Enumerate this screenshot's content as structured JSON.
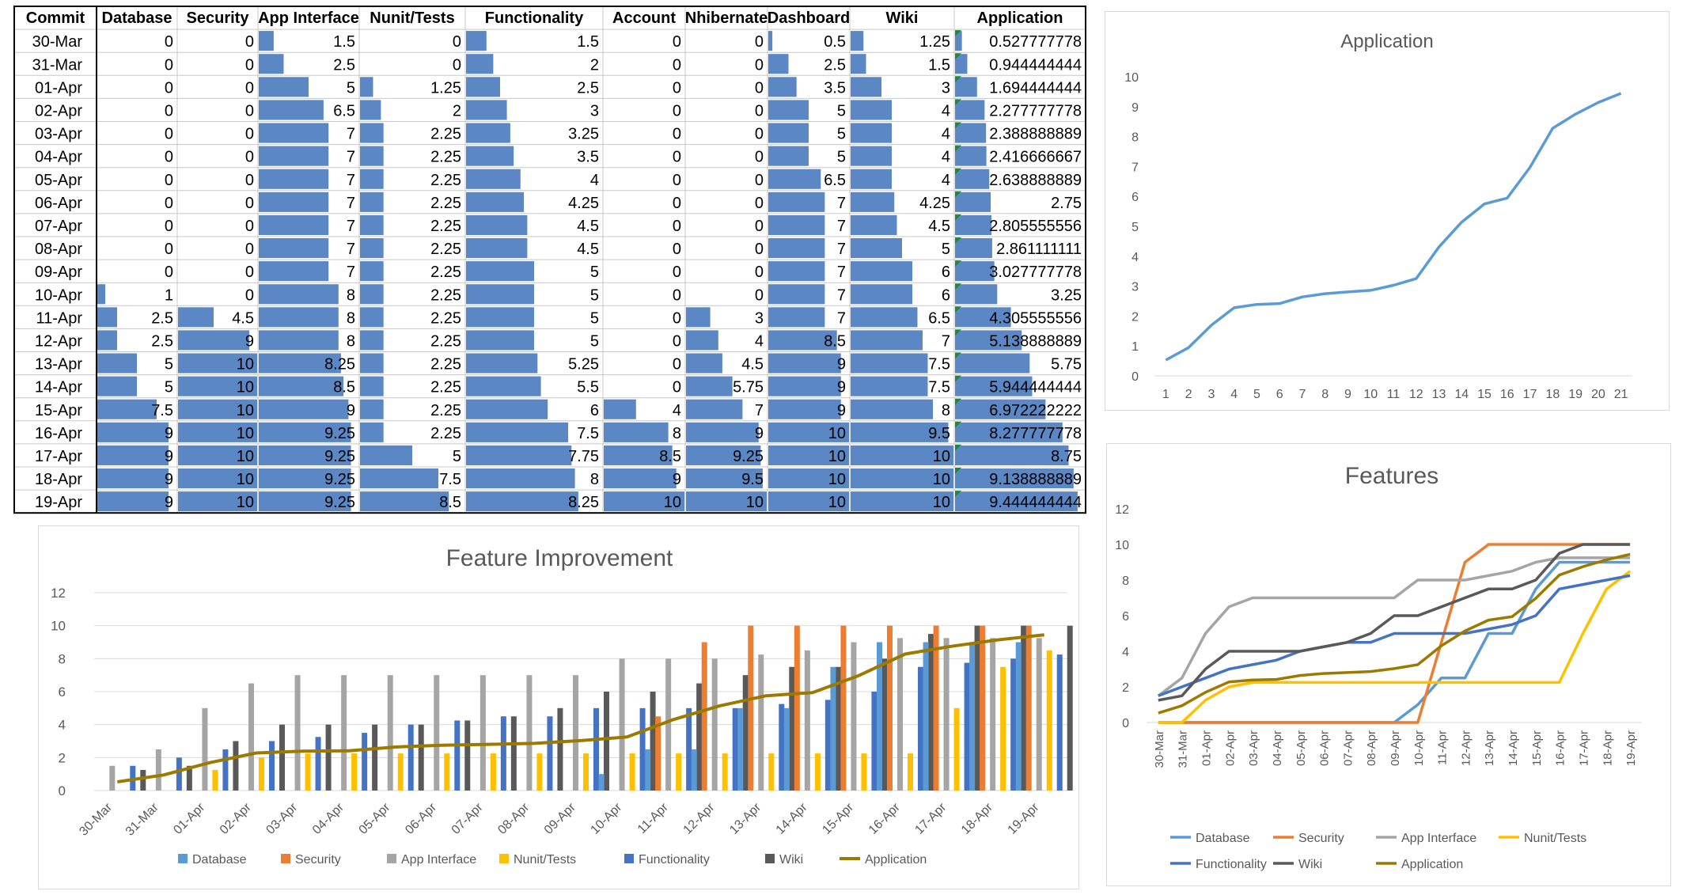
{
  "table": {
    "headers": [
      "Commit",
      "Database",
      "Security",
      "App Interface",
      "Nunit/Tests",
      "Functionality",
      "Account",
      "Nhibernate",
      "Dashboard",
      "Wiki",
      "Application"
    ],
    "rows": [
      [
        "30-Mar",
        "0",
        "0",
        "1.5",
        "0",
        "1.5",
        "0",
        "0",
        "0.5",
        "1.25",
        "0.527777778"
      ],
      [
        "31-Mar",
        "0",
        "0",
        "2.5",
        "0",
        "2",
        "0",
        "0",
        "2.5",
        "1.5",
        "0.944444444"
      ],
      [
        "01-Apr",
        "0",
        "0",
        "5",
        "1.25",
        "2.5",
        "0",
        "0",
        "3.5",
        "3",
        "1.694444444"
      ],
      [
        "02-Apr",
        "0",
        "0",
        "6.5",
        "2",
        "3",
        "0",
        "0",
        "5",
        "4",
        "2.277777778"
      ],
      [
        "03-Apr",
        "0",
        "0",
        "7",
        "2.25",
        "3.25",
        "0",
        "0",
        "5",
        "4",
        "2.388888889"
      ],
      [
        "04-Apr",
        "0",
        "0",
        "7",
        "2.25",
        "3.5",
        "0",
        "0",
        "5",
        "4",
        "2.416666667"
      ],
      [
        "05-Apr",
        "0",
        "0",
        "7",
        "2.25",
        "4",
        "0",
        "0",
        "6.5",
        "4",
        "2.638888889"
      ],
      [
        "06-Apr",
        "0",
        "0",
        "7",
        "2.25",
        "4.25",
        "0",
        "0",
        "7",
        "4.25",
        "2.75"
      ],
      [
        "07-Apr",
        "0",
        "0",
        "7",
        "2.25",
        "4.5",
        "0",
        "0",
        "7",
        "4.5",
        "2.805555556"
      ],
      [
        "08-Apr",
        "0",
        "0",
        "7",
        "2.25",
        "4.5",
        "0",
        "0",
        "7",
        "5",
        "2.861111111"
      ],
      [
        "09-Apr",
        "0",
        "0",
        "7",
        "2.25",
        "5",
        "0",
        "0",
        "7",
        "6",
        "3.027777778"
      ],
      [
        "10-Apr",
        "1",
        "0",
        "8",
        "2.25",
        "5",
        "0",
        "0",
        "7",
        "6",
        "3.25"
      ],
      [
        "11-Apr",
        "2.5",
        "4.5",
        "8",
        "2.25",
        "5",
        "0",
        "3",
        "7",
        "6.5",
        "4.305555556"
      ],
      [
        "12-Apr",
        "2.5",
        "9",
        "8",
        "2.25",
        "5",
        "0",
        "4",
        "8.5",
        "7",
        "5.138888889"
      ],
      [
        "13-Apr",
        "5",
        "10",
        "8.25",
        "2.25",
        "5.25",
        "0",
        "4.5",
        "9",
        "7.5",
        "5.75"
      ],
      [
        "14-Apr",
        "5",
        "10",
        "8.5",
        "2.25",
        "5.5",
        "0",
        "5.75",
        "9",
        "7.5",
        "5.944444444"
      ],
      [
        "15-Apr",
        "7.5",
        "10",
        "9",
        "2.25",
        "6",
        "4",
        "7",
        "9",
        "8",
        "6.972222222"
      ],
      [
        "16-Apr",
        "9",
        "10",
        "9.25",
        "2.25",
        "7.5",
        "8",
        "9",
        "10",
        "9.5",
        "8.277777778"
      ],
      [
        "17-Apr",
        "9",
        "10",
        "9.25",
        "5",
        "7.75",
        "8.5",
        "9.25",
        "10",
        "10",
        "8.75"
      ],
      [
        "18-Apr",
        "9",
        "10",
        "9.25",
        "7.5",
        "8",
        "9",
        "9.5",
        "10",
        "10",
        "9.138888889"
      ],
      [
        "19-Apr",
        "9",
        "10",
        "9.25",
        "8.5",
        "8.25",
        "10",
        "10",
        "10",
        "10",
        "9.444444444"
      ]
    ],
    "databar_color": "#5b87c5"
  },
  "chart_data": [
    {
      "type": "line",
      "title": "Application",
      "x": [
        1,
        2,
        3,
        4,
        5,
        6,
        7,
        8,
        9,
        10,
        11,
        12,
        13,
        14,
        15,
        16,
        17,
        18,
        19,
        20,
        21
      ],
      "series": [
        {
          "name": "Application",
          "color": "#5b9bd5",
          "values": [
            0.5278,
            0.9444,
            1.6944,
            2.2778,
            2.3889,
            2.4167,
            2.6389,
            2.75,
            2.8056,
            2.8611,
            3.0278,
            3.25,
            4.3056,
            5.1389,
            5.75,
            5.9444,
            6.9722,
            8.2778,
            8.75,
            9.1389,
            9.4444
          ]
        }
      ],
      "ylim": [
        0,
        10
      ],
      "yticks": [
        0,
        1,
        2,
        3,
        4,
        5,
        6,
        7,
        8,
        9,
        10
      ],
      "grid": false
    },
    {
      "type": "bar",
      "title": "Feature Improvement",
      "categories": [
        "30-Mar",
        "31-Mar",
        "01-Apr",
        "02-Apr",
        "03-Apr",
        "04-Apr",
        "05-Apr",
        "06-Apr",
        "07-Apr",
        "08-Apr",
        "09-Apr",
        "10-Apr",
        "11-Apr",
        "12-Apr",
        "13-Apr",
        "14-Apr",
        "15-Apr",
        "16-Apr",
        "17-Apr",
        "18-Apr",
        "19-Apr"
      ],
      "series": [
        {
          "name": "Database",
          "color": "#5b9bd5",
          "values": [
            0,
            0,
            0,
            0,
            0,
            0,
            0,
            0,
            0,
            0,
            0,
            1,
            2.5,
            2.5,
            5,
            5,
            7.5,
            9,
            9,
            9,
            9
          ]
        },
        {
          "name": "Security",
          "color": "#ed7d31",
          "values": [
            0,
            0,
            0,
            0,
            0,
            0,
            0,
            0,
            0,
            0,
            0,
            0,
            4.5,
            9,
            10,
            10,
            10,
            10,
            10,
            10,
            10
          ]
        },
        {
          "name": "App Interface",
          "color": "#a5a5a5",
          "values": [
            1.5,
            2.5,
            5,
            6.5,
            7,
            7,
            7,
            7,
            7,
            7,
            7,
            8,
            8,
            8,
            8.25,
            8.5,
            9,
            9.25,
            9.25,
            9.25,
            9.25
          ]
        },
        {
          "name": "Nunit/Tests",
          "color": "#ffc000",
          "values": [
            0,
            0,
            1.25,
            2,
            2.25,
            2.25,
            2.25,
            2.25,
            2.25,
            2.25,
            2.25,
            2.25,
            2.25,
            2.25,
            2.25,
            2.25,
            2.25,
            2.25,
            5,
            7.5,
            8.5
          ]
        },
        {
          "name": "Functionality",
          "color": "#4472c4",
          "values": [
            1.5,
            2,
            2.5,
            3,
            3.25,
            3.5,
            4,
            4.25,
            4.5,
            4.5,
            5,
            5,
            5,
            5,
            5.25,
            5.5,
            6,
            7.5,
            7.75,
            8,
            8.25
          ]
        },
        {
          "name": "Wiki",
          "color": "#595959",
          "values": [
            1.25,
            1.5,
            3,
            4,
            4,
            4,
            4,
            4.25,
            4.5,
            5,
            6,
            6,
            6.5,
            7,
            7.5,
            7.5,
            8,
            9.5,
            10,
            10,
            10
          ]
        },
        {
          "name": "Application",
          "color": "#9c7a00",
          "kind": "line",
          "values": [
            0.5278,
            0.9444,
            1.6944,
            2.2778,
            2.3889,
            2.4167,
            2.6389,
            2.75,
            2.8056,
            2.8611,
            3.0278,
            3.25,
            4.3056,
            5.1389,
            5.75,
            5.9444,
            6.9722,
            8.2778,
            8.75,
            9.1389,
            9.4444
          ]
        }
      ],
      "ylim": [
        0,
        12
      ],
      "yticks": [
        0,
        2,
        4,
        6,
        8,
        10,
        12
      ],
      "legend": "bottom",
      "grid": true
    },
    {
      "type": "line",
      "title": "Features",
      "categories": [
        "30-Mar",
        "31-Mar",
        "01-Apr",
        "02-Apr",
        "03-Apr",
        "04-Apr",
        "05-Apr",
        "06-Apr",
        "07-Apr",
        "08-Apr",
        "09-Apr",
        "10-Apr",
        "11-Apr",
        "12-Apr",
        "13-Apr",
        "14-Apr",
        "15-Apr",
        "16-Apr",
        "17-Apr",
        "18-Apr",
        "19-Apr"
      ],
      "series": [
        {
          "name": "Database",
          "color": "#5b9bd5",
          "values": [
            0,
            0,
            0,
            0,
            0,
            0,
            0,
            0,
            0,
            0,
            0,
            1,
            2.5,
            2.5,
            5,
            5,
            7.5,
            9,
            9,
            9,
            9
          ]
        },
        {
          "name": "Security",
          "color": "#ed7d31",
          "values": [
            0,
            0,
            0,
            0,
            0,
            0,
            0,
            0,
            0,
            0,
            0,
            0,
            4.5,
            9,
            10,
            10,
            10,
            10,
            10,
            10,
            10
          ]
        },
        {
          "name": "App Interface",
          "color": "#a5a5a5",
          "values": [
            1.5,
            2.5,
            5,
            6.5,
            7,
            7,
            7,
            7,
            7,
            7,
            7,
            8,
            8,
            8,
            8.25,
            8.5,
            9,
            9.25,
            9.25,
            9.25,
            9.25
          ]
        },
        {
          "name": "Nunit/Tests",
          "color": "#ffc000",
          "values": [
            0,
            0,
            1.25,
            2,
            2.25,
            2.25,
            2.25,
            2.25,
            2.25,
            2.25,
            2.25,
            2.25,
            2.25,
            2.25,
            2.25,
            2.25,
            2.25,
            2.25,
            5,
            7.5,
            8.5
          ]
        },
        {
          "name": "Functionality",
          "color": "#4472c4",
          "values": [
            1.5,
            2,
            2.5,
            3,
            3.25,
            3.5,
            4,
            4.25,
            4.5,
            4.5,
            5,
            5,
            5,
            5,
            5.25,
            5.5,
            6,
            7.5,
            7.75,
            8,
            8.25
          ]
        },
        {
          "name": "Wiki",
          "color": "#595959",
          "values": [
            1.25,
            1.5,
            3,
            4,
            4,
            4,
            4,
            4.25,
            4.5,
            5,
            6,
            6,
            6.5,
            7,
            7.5,
            7.5,
            8,
            9.5,
            10,
            10,
            10
          ]
        },
        {
          "name": "Application",
          "color": "#9c7a00",
          "values": [
            0.5278,
            0.9444,
            1.6944,
            2.2778,
            2.3889,
            2.4167,
            2.6389,
            2.75,
            2.8056,
            2.8611,
            3.0278,
            3.25,
            4.3056,
            5.1389,
            5.75,
            5.9444,
            6.9722,
            8.2778,
            8.75,
            9.1389,
            9.4444
          ]
        }
      ],
      "ylim": [
        0,
        12
      ],
      "yticks": [
        0,
        2,
        4,
        6,
        8,
        10,
        12
      ],
      "legend": "bottom",
      "grid": false
    }
  ]
}
